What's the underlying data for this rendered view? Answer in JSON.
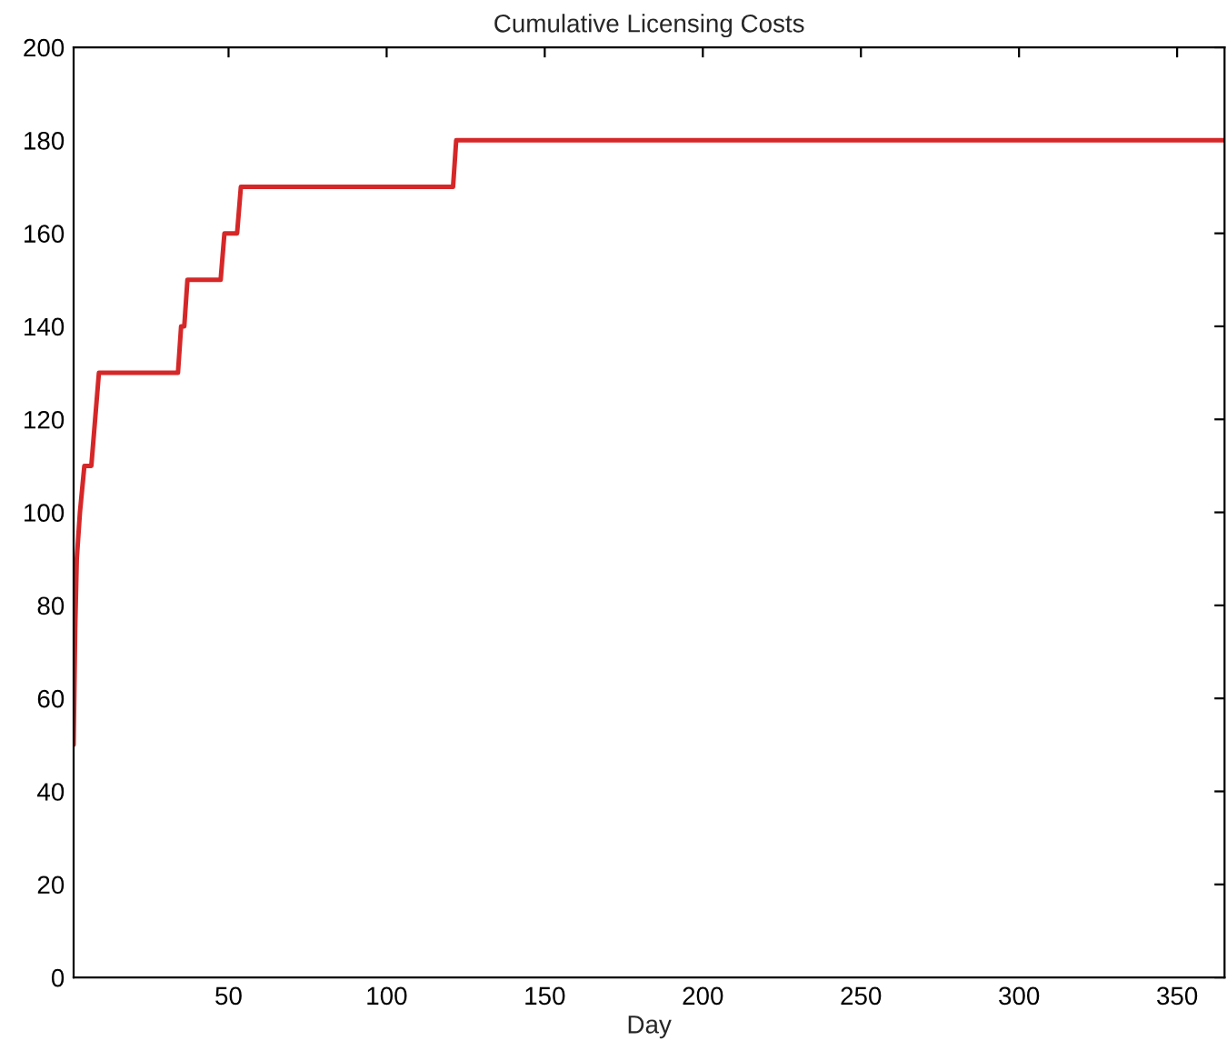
{
  "chart_data": {
    "type": "line",
    "title": "Cumulative Licensing Costs",
    "xlabel": "Day",
    "x": [
      1,
      1.5,
      2,
      3,
      4.4,
      6.6,
      9,
      34,
      35,
      36,
      37,
      47.5,
      48.7,
      52.7,
      53.9,
      121,
      122,
      365
    ],
    "series": [
      {
        "color": "#d62728",
        "values": [
          50,
          75,
          90,
          100,
          110,
          110,
          130,
          130,
          140,
          140,
          150,
          150,
          160,
          160,
          170,
          170,
          180,
          180
        ]
      }
    ],
    "xlim": [
      1,
      365
    ],
    "xticks": [
      50,
      100,
      150,
      200,
      250,
      300,
      350
    ],
    "ylim": [
      0,
      200
    ],
    "yticks": [
      0,
      20,
      40,
      60,
      80,
      100,
      120,
      140,
      160,
      180,
      200
    ],
    "grid": false,
    "legend": false,
    "marker": "none",
    "line_style": "solid"
  }
}
